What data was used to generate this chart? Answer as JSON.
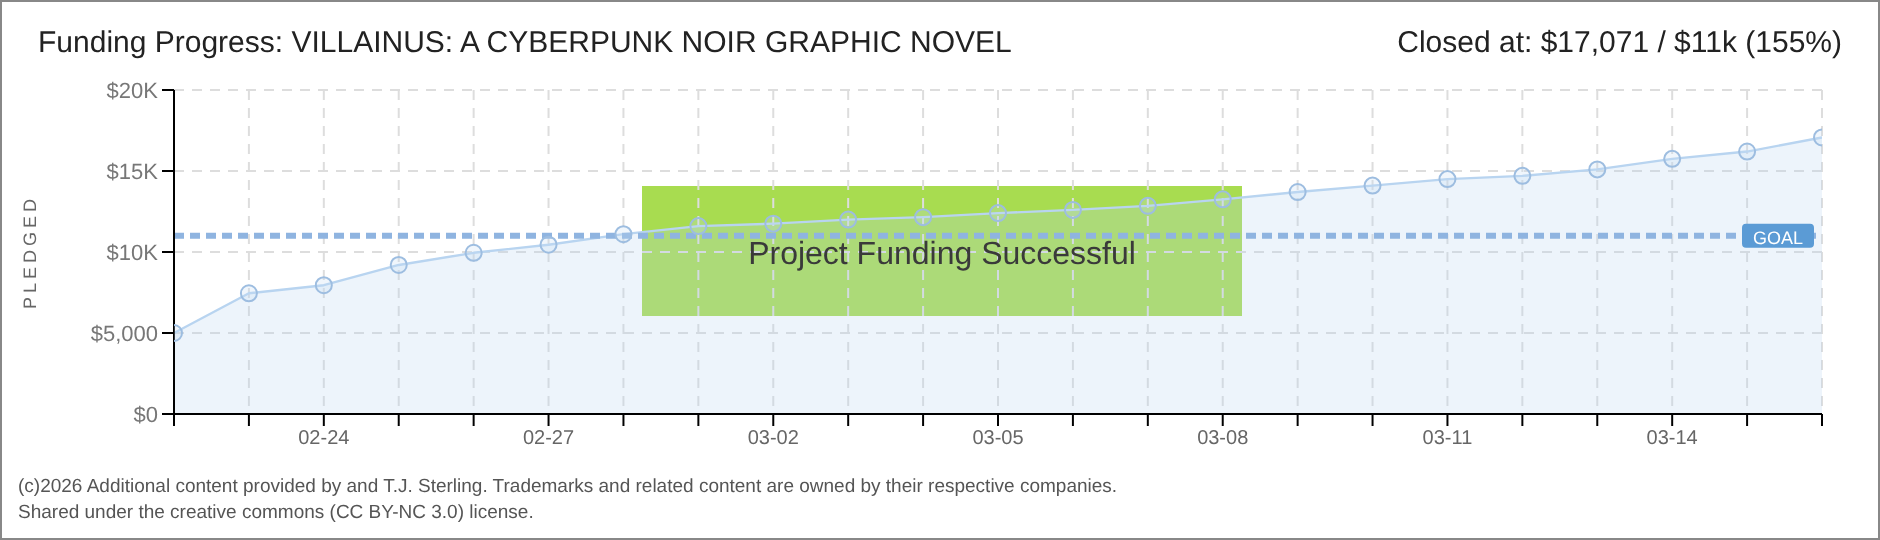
{
  "chart_data": {
    "type": "area",
    "title": "Funding Progress: VILLAINUS: A CYBERPUNK NOIR GRAPHIC NOVEL",
    "subtitle": "Closed at: $17,071 / $11k (155%)",
    "ylabel": "PLEDGED",
    "categories": [
      null,
      null,
      "02-24",
      null,
      null,
      "02-27",
      null,
      null,
      "03-02",
      null,
      null,
      "03-05",
      null,
      null,
      "03-08",
      null,
      null,
      "03-11",
      null,
      null,
      "03-14",
      null,
      null
    ],
    "series": [
      {
        "color": "#b8d4f0",
        "values": [
          5000,
          7450,
          7950,
          9200,
          9950,
          10450,
          11100,
          11600,
          11750,
          12000,
          12150,
          12400,
          12600,
          12850,
          13250,
          13700,
          14100,
          14500,
          14700,
          15100,
          15750,
          16200,
          17071
        ]
      }
    ],
    "ylim": [
      0,
      20000
    ],
    "yticks": [
      {
        "value": 0,
        "label": "$0"
      },
      {
        "value": 5000,
        "label": "$5,000"
      },
      {
        "value": 10000,
        "label": "$10K"
      },
      {
        "value": 15000,
        "label": "$15K"
      },
      {
        "value": 20000,
        "label": "$20K"
      }
    ],
    "ref_lines": [
      {
        "axis": "y",
        "value": 11000,
        "label": "GOAL",
        "color": "#8fb4e0",
        "line_style": "dashed"
      }
    ],
    "grid": true,
    "marker": "circle",
    "annotations": [
      "Project Funding Successful",
      "(c)2026 Additional content provided by and T.J. Sterling. Trademarks and related content are owned by their respective companies.",
      "Shared under the creative commons (CC BY-NC 3.0) license."
    ]
  }
}
